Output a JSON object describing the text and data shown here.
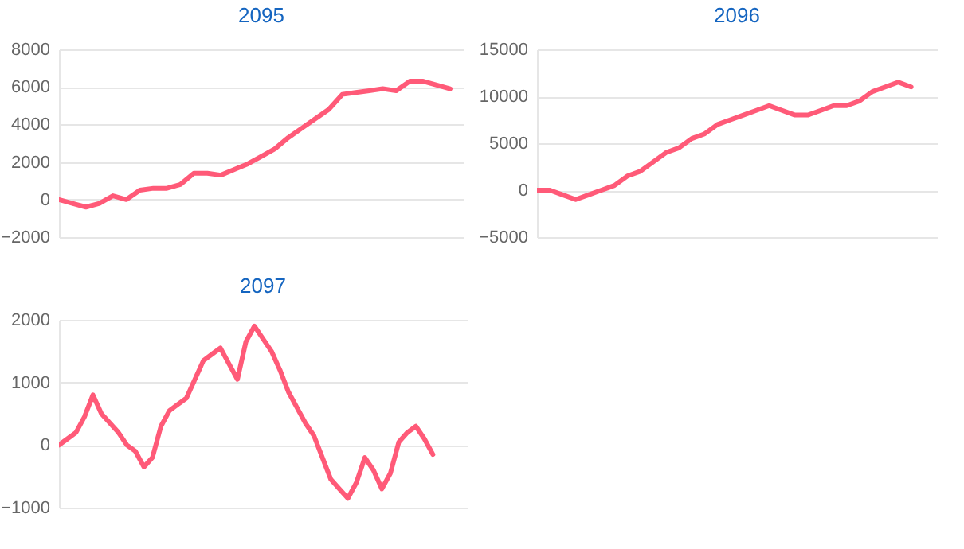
{
  "chart_data": [
    {
      "type": "line",
      "title": "2095",
      "categories": [
        null,
        null,
        null,
        null,
        null,
        null,
        null,
        null,
        null,
        null,
        null,
        null,
        null,
        null,
        null,
        null,
        null,
        null,
        null,
        null,
        null,
        null,
        null,
        null,
        null,
        null,
        null,
        null,
        null,
        null,
        null
      ],
      "series": [
        {
          "color": "#ff5a78",
          "values": [
            0,
            -200,
            -400,
            -200,
            200,
            0,
            500,
            600,
            600,
            800,
            1400,
            1400,
            1300,
            1600,
            1900,
            2300,
            2700,
            3300,
            3800,
            4300,
            4800,
            5600,
            5700,
            5800,
            5900,
            5800,
            6300,
            6300,
            6100,
            5900,
            null
          ]
        }
      ],
      "ylim": [
        -2000,
        8000
      ],
      "yticks": [
        -2000,
        0,
        2000,
        4000,
        6000,
        8000
      ],
      "grid": "y",
      "tick_labels": "y",
      "marker": "none"
    },
    {
      "type": "line",
      "title": "2096",
      "categories": [
        null,
        null,
        null,
        null,
        null,
        null,
        null,
        null,
        null,
        null,
        null,
        null,
        null,
        null,
        null,
        null,
        null,
        null,
        null,
        null,
        null,
        null,
        null,
        null,
        null,
        null,
        null,
        null,
        null,
        null,
        null,
        null
      ],
      "series": [
        {
          "color": "#ff5a78",
          "values": [
            0,
            0,
            -500,
            -1000,
            -500,
            0,
            500,
            1500,
            2000,
            3000,
            4000,
            4500,
            5500,
            6000,
            7000,
            7500,
            8000,
            8500,
            9000,
            8500,
            8000,
            8000,
            8500,
            9000,
            9000,
            9500,
            10500,
            11000,
            11500,
            11000,
            null,
            null
          ]
        }
      ],
      "ylim": [
        -5000,
        15000
      ],
      "yticks": [
        -5000,
        0,
        5000,
        10000,
        15000
      ],
      "grid": "y",
      "tick_labels": "y",
      "marker": "none"
    },
    {
      "type": "line",
      "title": "2097",
      "categories": [
        null,
        null,
        null,
        null,
        null,
        null,
        null,
        null,
        null,
        null,
        null,
        null,
        null,
        null,
        null,
        null,
        null,
        null,
        null,
        null,
        null,
        null,
        null,
        null,
        null,
        null,
        null,
        null,
        null,
        null,
        null,
        null,
        null,
        null,
        null,
        null,
        null,
        null,
        null,
        null,
        null,
        null,
        null,
        null,
        null,
        null,
        null,
        null,
        null
      ],
      "series": [
        {
          "color": "#ff5a78",
          "values": [
            0,
            100,
            200,
            450,
            800,
            500,
            350,
            200,
            0,
            -100,
            -350,
            -200,
            300,
            550,
            650,
            750,
            1050,
            1350,
            1450,
            1550,
            1300,
            1050,
            1650,
            1900,
            1700,
            1500,
            1200,
            850,
            600,
            350,
            150,
            -200,
            -550,
            -700,
            -850,
            -600,
            -200,
            -400,
            -700,
            -450,
            50,
            200,
            300,
            100,
            -150,
            null,
            null,
            null,
            null
          ]
        }
      ],
      "ylim": [
        -1000,
        2000
      ],
      "yticks": [
        -1000,
        0,
        1000,
        2000
      ],
      "grid": "y",
      "tick_labels": "y",
      "marker": "none"
    }
  ]
}
